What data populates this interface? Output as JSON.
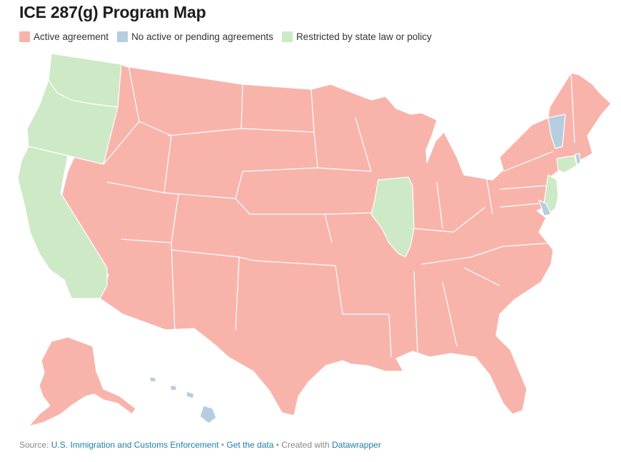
{
  "title": "ICE 287(g) Program Map",
  "legend": [
    {
      "label": "Active agreement",
      "color": "#f8b4ab"
    },
    {
      "label": "No active or pending agreements",
      "color": "#b6cde0"
    },
    {
      "label": "Restricted by state law or policy",
      "color": "#cde9c6"
    }
  ],
  "footer": {
    "source_prefix": "Source:",
    "source_link": "U.S. Immigration and Customs Enforcement",
    "bullet_1": "•",
    "data_link": "Get the data",
    "bullet_2": "•",
    "created_with": "Created with",
    "tool_link": "Datawrapper"
  },
  "states": [
    {
      "name": "Washington",
      "status": "restricted"
    },
    {
      "name": "Oregon",
      "status": "restricted"
    },
    {
      "name": "California",
      "status": "restricted"
    },
    {
      "name": "Illinois",
      "status": "restricted"
    },
    {
      "name": "New Jersey",
      "status": "restricted"
    },
    {
      "name": "Connecticut",
      "status": "restricted"
    },
    {
      "name": "Vermont",
      "status": "none"
    },
    {
      "name": "Delaware",
      "status": "none"
    },
    {
      "name": "Rhode Island",
      "status": "none"
    },
    {
      "name": "Hawaii",
      "status": "none"
    }
  ]
}
